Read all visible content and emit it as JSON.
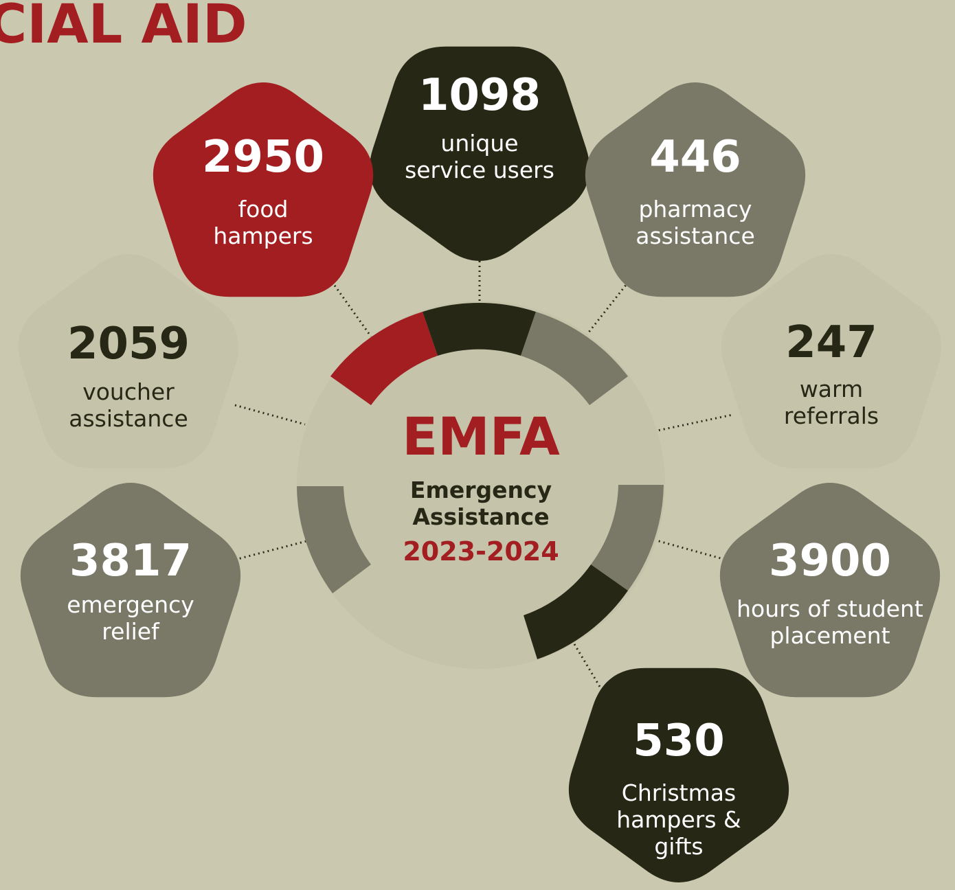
{
  "header": {
    "title_fragment": "CIAL AID"
  },
  "center": {
    "acronym": "EMFA",
    "line1": "Emergency",
    "line2": "Assistance",
    "years": "2023-2024"
  },
  "colors": {
    "background": "#cac9b0",
    "red": "#a31e21",
    "dark": "#272716",
    "gray": "#7a7866",
    "light": "#c5c3aa",
    "white": "#ffffff"
  },
  "stats": [
    {
      "id": "unique-service-users",
      "value": "1098",
      "label": [
        "unique",
        "service users"
      ],
      "style": "dark"
    },
    {
      "id": "food-hampers",
      "value": "2950",
      "label": [
        "food",
        "hampers"
      ],
      "style": "red"
    },
    {
      "id": "pharmacy-assistance",
      "value": "446",
      "label": [
        "pharmacy",
        "assistance"
      ],
      "style": "gray"
    },
    {
      "id": "voucher-assistance",
      "value": "2059",
      "label": [
        "voucher",
        "assistance"
      ],
      "style": "light"
    },
    {
      "id": "warm-referrals",
      "value": "247",
      "label": [
        "warm",
        "referrals"
      ],
      "style": "light"
    },
    {
      "id": "emergency-relief",
      "value": "3817",
      "label": [
        "emergency",
        "relief"
      ],
      "style": "gray"
    },
    {
      "id": "student-placement",
      "value": "3900",
      "label": [
        "hours of student",
        "placement"
      ],
      "style": "gray"
    },
    {
      "id": "christmas-hampers",
      "value": "530",
      "label": [
        "Christmas",
        "hampers &",
        "gifts"
      ],
      "style": "dark"
    }
  ]
}
